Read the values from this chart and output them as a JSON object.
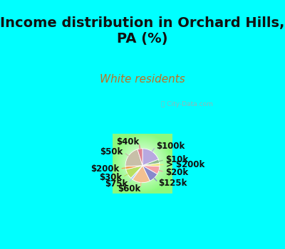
{
  "title": "Income distribution in Orchard Hills,\nPA (%)",
  "subtitle": "White residents",
  "bg_cyan": "#00FFFF",
  "chart_bg": "#cceedd",
  "labels": [
    "$100k",
    "$10k",
    "> $200k",
    "$20k",
    "$125k",
    "$60k",
    "$75k",
    "$30k",
    "$200k",
    "$50k",
    "$40k"
  ],
  "sizes": [
    20,
    4,
    3,
    8,
    10,
    18,
    2,
    10,
    3,
    22,
    5
  ],
  "colors": [
    "#b8a8e0",
    "#8fbc8f",
    "#ede87a",
    "#f4a0a8",
    "#8888cc",
    "#f4c090",
    "#a8c8f0",
    "#b8e060",
    "#f0a050",
    "#c8bfa8",
    "#e08090"
  ],
  "startangle": 90,
  "counterclock": false,
  "title_fontsize": 14,
  "subtitle_fontsize": 11,
  "label_fontsize": 8.5,
  "watermark": "ⓘ City-Data.com"
}
